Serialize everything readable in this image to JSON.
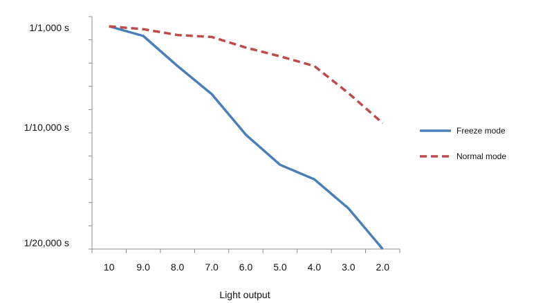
{
  "chart_data": {
    "type": "line",
    "title": "",
    "xlabel": "Light output",
    "ylabel": "",
    "categories": [
      "10",
      "9.0",
      "8.0",
      "7.0",
      "6.0",
      "5.0",
      "4.0",
      "3.0",
      "2.0"
    ],
    "y_tick_labels": [
      "1/1,000 s",
      "1/10,000 s",
      "1/20,000 s"
    ],
    "y_minor_tick_count": 10,
    "grid": false,
    "legend_position": "right",
    "series": [
      {
        "name": "Freeze mode",
        "color": "#4a7ebb",
        "dash": "solid",
        "values": [
          0.5,
          1.0,
          2.55,
          4.0,
          6.1,
          7.65,
          8.4,
          9.9,
          12.0
        ]
      },
      {
        "name": "Normal mode",
        "color": "#be4b48",
        "dash": "dashed",
        "values": [
          0.5,
          0.65,
          0.95,
          1.05,
          1.6,
          2.05,
          2.55,
          3.95,
          5.5
        ]
      }
    ],
    "ylim": [
      0,
      12
    ]
  }
}
